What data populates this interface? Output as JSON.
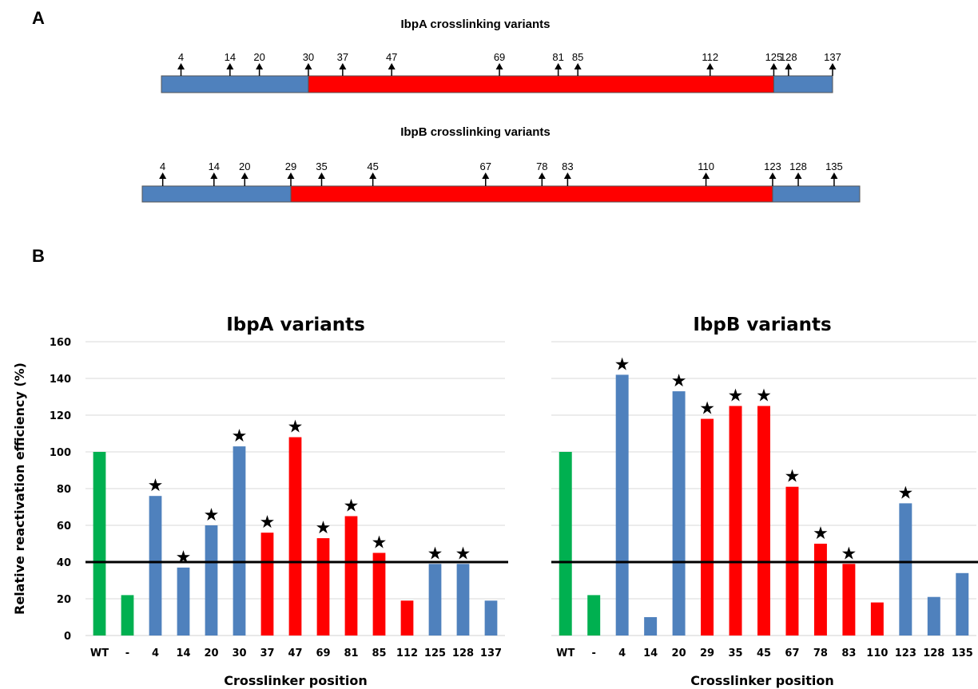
{
  "colors": {
    "blue": "#4F81BD",
    "red": "#FF0000",
    "green": "#00B050",
    "grid": "#D9D9D9",
    "axis": "#000000"
  },
  "panel_a": {
    "label": "A",
    "maps": [
      {
        "title": "IbpA crosslinking variants",
        "segments": [
          {
            "from": 0,
            "to": 30,
            "color": "blue"
          },
          {
            "from": 30,
            "to": 125,
            "color": "red"
          },
          {
            "from": 125,
            "to": 137,
            "color": "blue"
          }
        ],
        "positions": [
          "4",
          "14",
          "20",
          "30",
          "37",
          "47",
          "69",
          "81",
          "85",
          "112",
          "125",
          "128",
          "137"
        ]
      },
      {
        "title": "IbpB crosslinking variants",
        "segments": [
          {
            "from": 0,
            "to": 29,
            "color": "blue"
          },
          {
            "from": 29,
            "to": 123,
            "color": "red"
          },
          {
            "from": 123,
            "to": 140,
            "color": "blue"
          }
        ],
        "positions": [
          "4",
          "14",
          "20",
          "29",
          "35",
          "45",
          "67",
          "78",
          "83",
          "110",
          "123",
          "128",
          "135"
        ]
      }
    ]
  },
  "panel_b": {
    "label": "B"
  },
  "chart_data": [
    {
      "type": "bar",
      "title": "IbpA variants",
      "xlabel": "Crosslinker position",
      "ylabel": "Relative reactivation efficiency (%)",
      "ylim": [
        0,
        160
      ],
      "yticks": [
        "0",
        "20",
        "40",
        "60",
        "80",
        "100",
        "120",
        "140",
        "160"
      ],
      "grid": true,
      "threshold": 40,
      "categories": [
        "WT",
        "-",
        "4",
        "14",
        "20",
        "30",
        "37",
        "47",
        "69",
        "81",
        "85",
        "112",
        "125",
        "128",
        "137"
      ],
      "values": [
        100,
        22,
        76,
        37,
        60,
        103,
        56,
        108,
        53,
        65,
        45,
        19,
        39,
        39,
        19
      ],
      "bar_colors": [
        "green",
        "green",
        "blue",
        "blue",
        "blue",
        "blue",
        "red",
        "red",
        "red",
        "red",
        "red",
        "red",
        "blue",
        "blue",
        "blue"
      ],
      "significant": [
        false,
        false,
        true,
        true,
        true,
        true,
        true,
        true,
        true,
        true,
        true,
        false,
        true,
        true,
        false
      ],
      "marker": "★"
    },
    {
      "type": "bar",
      "title": "IbpB variants",
      "xlabel": "Crosslinker position",
      "ylabel": "",
      "ylim": [
        0,
        160
      ],
      "grid": true,
      "threshold": 40,
      "categories": [
        "WT",
        "-",
        "4",
        "14",
        "20",
        "29",
        "35",
        "45",
        "67",
        "78",
        "83",
        "110",
        "123",
        "128",
        "135"
      ],
      "values": [
        100,
        22,
        142,
        10,
        133,
        118,
        125,
        125,
        81,
        50,
        39,
        18,
        72,
        21,
        34
      ],
      "bar_colors": [
        "green",
        "green",
        "blue",
        "blue",
        "blue",
        "red",
        "red",
        "red",
        "red",
        "red",
        "red",
        "red",
        "blue",
        "blue",
        "blue"
      ],
      "significant": [
        false,
        false,
        true,
        false,
        true,
        true,
        true,
        true,
        true,
        true,
        true,
        false,
        true,
        false,
        false
      ],
      "marker": "★"
    }
  ]
}
